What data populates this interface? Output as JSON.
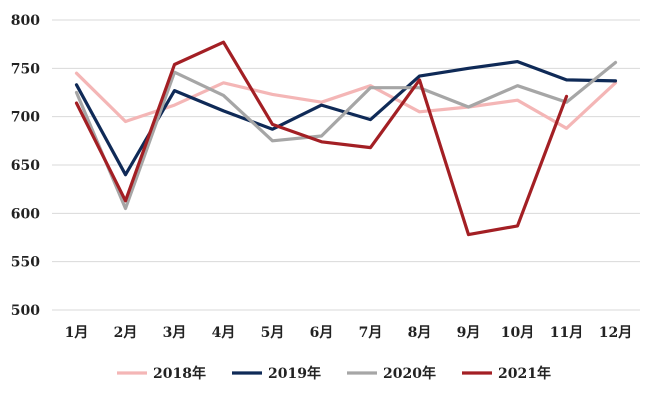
{
  "chart_data": {
    "type": "line",
    "title": "",
    "xlabel": "",
    "ylabel": "",
    "categories": [
      "1月",
      "2月",
      "3月",
      "4月",
      "5月",
      "6月",
      "7月",
      "8月",
      "9月",
      "10月",
      "11月",
      "12月"
    ],
    "ylim": [
      500,
      800
    ],
    "yticks": [
      500,
      550,
      600,
      650,
      700,
      750,
      800
    ],
    "grid": "horizontal",
    "legend_position": "bottom",
    "series": [
      {
        "name": "2018年",
        "color": "#f4b6b6",
        "values": [
          745,
          695,
          712,
          735,
          723,
          715,
          732,
          705,
          710,
          717,
          688,
          735
        ]
      },
      {
        "name": "2019年",
        "color": "#0f2a57",
        "values": [
          733,
          640,
          727,
          706,
          687,
          712,
          697,
          742,
          750,
          757,
          738,
          737
        ]
      },
      {
        "name": "2020年",
        "color": "#a6a6a6",
        "values": [
          725,
          605,
          746,
          722,
          675,
          680,
          730,
          730,
          710,
          732,
          715,
          756
        ]
      },
      {
        "name": "2021年",
        "color": "#a31f24",
        "values": [
          714,
          613,
          754,
          777,
          692,
          674,
          668,
          738,
          578,
          587,
          721,
          null
        ]
      }
    ]
  }
}
